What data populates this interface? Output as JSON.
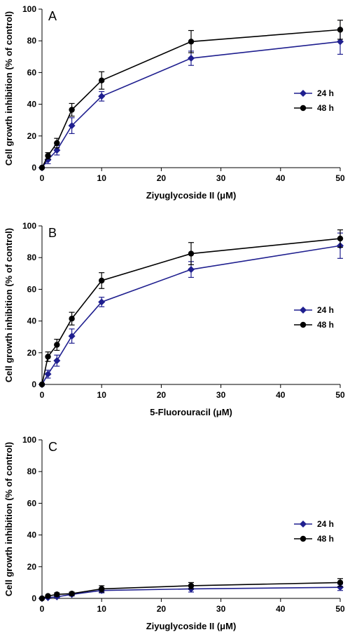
{
  "colors": {
    "series_24h": "#1f1f8f",
    "series_48h": "#000000"
  },
  "chart_data": [
    {
      "type": "line",
      "panel_label": "A",
      "xlabel": "Ziyuglycoside II (μM)",
      "ylabel": "Cell growth inhibition (% of control)",
      "xlim": [
        0,
        50
      ],
      "ylim": [
        0,
        100
      ],
      "xticks": [
        "0",
        "10",
        "20",
        "30",
        "40",
        "50"
      ],
      "yticks": [
        "0",
        "20",
        "40",
        "60",
        "80",
        "100"
      ],
      "legend_position": "right",
      "x": [
        0,
        1,
        2.5,
        5,
        10,
        25,
        50
      ],
      "series": [
        {
          "name": "24 h",
          "marker": "diamond",
          "color": "#1f1f8f",
          "values": [
            0,
            5,
            11,
            26.5,
            45,
            69,
            79.5
          ],
          "errors": [
            0,
            2.5,
            3,
            5,
            3,
            4.5,
            8
          ]
        },
        {
          "name": "48 h",
          "marker": "circle",
          "color": "#000000",
          "values": [
            0,
            7.5,
            15.5,
            36.5,
            55,
            79.5,
            87
          ],
          "errors": [
            0,
            2,
            3,
            4,
            5.5,
            7,
            6
          ]
        }
      ]
    },
    {
      "type": "line",
      "panel_label": "B",
      "xlabel": "5-Fluorouracil (μM)",
      "ylabel": "Cell growth inhibition (% of control)",
      "xlim": [
        0,
        50
      ],
      "ylim": [
        0,
        100
      ],
      "xticks": [
        "0",
        "10",
        "20",
        "30",
        "40",
        "50"
      ],
      "yticks": [
        "0",
        "20",
        "40",
        "60",
        "80",
        "100"
      ],
      "legend_position": "right",
      "x": [
        0,
        1,
        2.5,
        5,
        10,
        25,
        50
      ],
      "series": [
        {
          "name": "24 h",
          "marker": "diamond",
          "color": "#1f1f8f",
          "values": [
            0,
            6.5,
            15,
            30.5,
            52,
            72.5,
            87.5
          ],
          "errors": [
            0,
            2.5,
            3.5,
            4.5,
            3,
            5,
            8
          ]
        },
        {
          "name": "48 h",
          "marker": "circle",
          "color": "#000000",
          "values": [
            0,
            17.5,
            25,
            41.5,
            65.5,
            82.5,
            92
          ],
          "errors": [
            0,
            3,
            3.5,
            4,
            5,
            7,
            5.5
          ]
        }
      ]
    },
    {
      "type": "line",
      "panel_label": "C",
      "xlabel": "Ziyuglycoside II (μM)",
      "ylabel": "Cell growth inhibition (% of control)",
      "xlim": [
        0,
        50
      ],
      "ylim": [
        0,
        100
      ],
      "xticks": [
        "0",
        "10",
        "20",
        "30",
        "40",
        "50"
      ],
      "yticks": [
        "0",
        "20",
        "40",
        "60",
        "80",
        "100"
      ],
      "legend_position": "right",
      "x": [
        0,
        1,
        2.5,
        5,
        10,
        25,
        50
      ],
      "series": [
        {
          "name": "24 h",
          "marker": "diamond",
          "color": "#1f1f8f",
          "values": [
            0,
            0.5,
            1,
            2.5,
            5,
            6,
            7
          ],
          "errors": [
            0,
            0.5,
            0.5,
            1,
            1.5,
            2,
            2
          ]
        },
        {
          "name": "48 h",
          "marker": "circle",
          "color": "#000000",
          "values": [
            0,
            1.5,
            2.5,
            3,
            6,
            8,
            10
          ],
          "errors": [
            0,
            0.5,
            1,
            1,
            2,
            2,
            2.5
          ]
        }
      ]
    }
  ]
}
